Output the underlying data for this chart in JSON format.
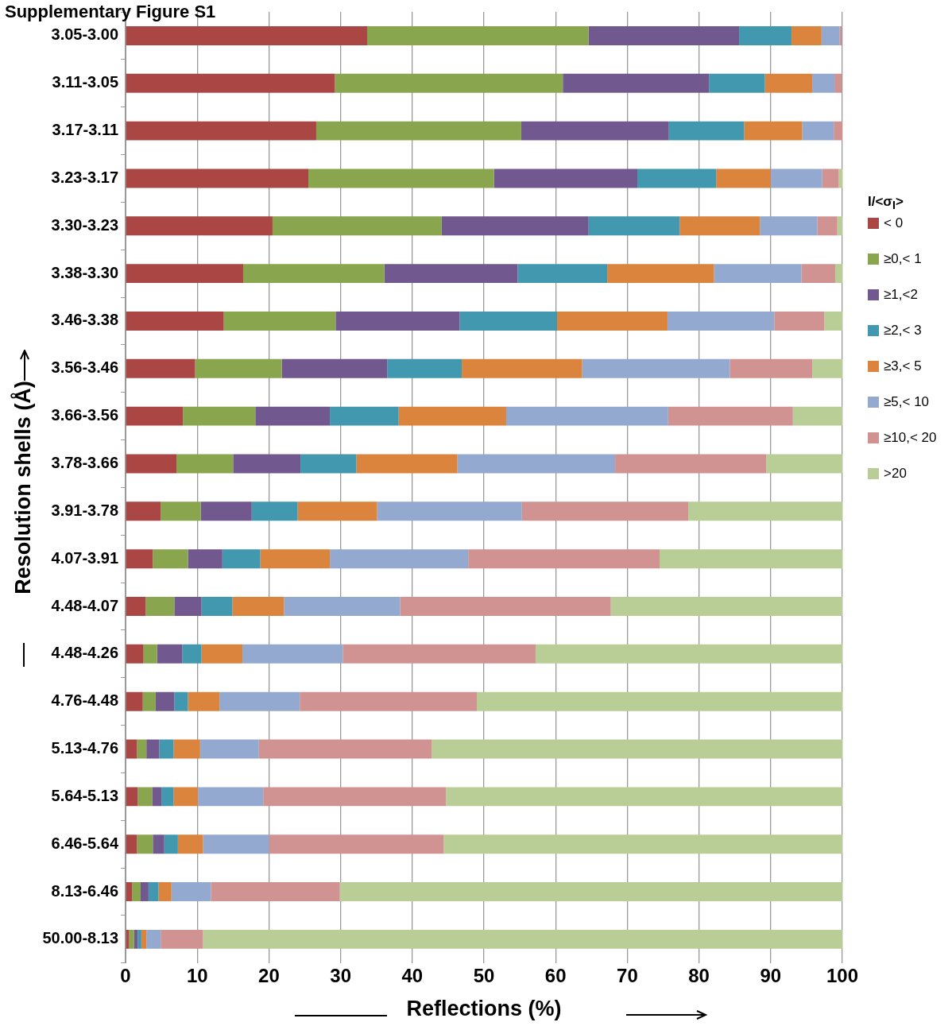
{
  "chart_data": {
    "type": "bar",
    "orientation": "horizontal",
    "stacked": true,
    "title": "Supplementary Figure S1",
    "xlabel": "Reflections (%)",
    "ylabel": "Resolution shells (Å)",
    "legend_title": "I/<σ$_{I}$>",
    "legend": "right",
    "grid": "x",
    "xlim": [
      0,
      100
    ],
    "xticks": [
      0,
      10,
      20,
      30,
      40,
      50,
      60,
      70,
      80,
      90,
      100
    ],
    "categories": [
      "3.05-3.00",
      "3.11-3.05",
      "3.17-3.11",
      "3.23-3.17",
      "3.30-3.23",
      "3.38-3.30",
      "3.46-3.38",
      "3.56-3.46",
      "3.66-3.56",
      "3.78-3.66",
      "3.91-3.78",
      "4.07-3.91",
      "4.48-4.07",
      "4.48-4.26",
      "4.76-4.48",
      "5.13-4.76",
      "5.64-5.13",
      "6.46-5.64",
      "8.13-6.46",
      "50.00-8.13"
    ],
    "series": [
      {
        "name": "< 0",
        "color": "#aa4644",
        "values": [
          33.7,
          29.2,
          26.6,
          25.5,
          20.5,
          16.4,
          13.7,
          9.7,
          8.0,
          7.1,
          4.9,
          3.8,
          2.8,
          2.5,
          2.4,
          1.6,
          1.7,
          1.6,
          0.9,
          0.5
        ]
      },
      {
        "name": "≥0,< 1",
        "color": "#89a54e",
        "values": [
          30.9,
          31.8,
          28.6,
          25.9,
          23.6,
          19.7,
          15.6,
          12.1,
          10.1,
          7.9,
          5.6,
          4.9,
          4.0,
          1.9,
          1.8,
          1.3,
          2.0,
          2.2,
          1.2,
          0.7
        ]
      },
      {
        "name": "≥1,<2",
        "color": "#71588f",
        "values": [
          21.0,
          20.4,
          20.6,
          20.0,
          20.5,
          18.6,
          17.3,
          14.7,
          10.4,
          9.4,
          7.1,
          4.8,
          3.8,
          3.5,
          2.6,
          1.8,
          1.3,
          1.6,
          1.1,
          0.5
        ]
      },
      {
        "name": "≥2,< 3",
        "color": "#4198af",
        "values": [
          7.3,
          7.8,
          10.5,
          11.0,
          12.7,
          12.5,
          13.6,
          10.4,
          9.6,
          7.8,
          6.4,
          5.3,
          4.3,
          2.7,
          1.9,
          2.0,
          1.7,
          1.9,
          1.4,
          0.5
        ]
      },
      {
        "name": "≥3,< 5",
        "color": "#db843d",
        "values": [
          4.2,
          6.6,
          8.1,
          7.6,
          11.2,
          14.9,
          15.4,
          16.8,
          15.0,
          14.1,
          11.1,
          9.7,
          7.2,
          5.7,
          4.4,
          3.7,
          3.4,
          3.5,
          1.8,
          0.7
        ]
      },
      {
        "name": "≥5,< 10",
        "color": "#93a9cf",
        "values": [
          2.5,
          3.1,
          4.4,
          7.2,
          8.0,
          12.2,
          14.9,
          20.6,
          22.6,
          22.0,
          20.2,
          19.3,
          16.2,
          14.0,
          11.2,
          8.2,
          9.1,
          9.2,
          5.5,
          2.0
        ]
      },
      {
        "name": "≥10,< 20",
        "color": "#d19392",
        "values": [
          0.3,
          1.0,
          1.2,
          2.3,
          2.8,
          4.7,
          7.0,
          11.5,
          17.4,
          21.1,
          23.2,
          26.7,
          29.4,
          26.9,
          24.7,
          24.1,
          25.5,
          24.4,
          18.0,
          5.9
        ]
      },
      {
        "name": ">20",
        "color": "#b9cd96",
        "values": [
          0,
          0,
          0,
          0.5,
          0.7,
          1.0,
          2.5,
          4.2,
          6.9,
          10.6,
          21.5,
          25.5,
          32.3,
          42.8,
          51.0,
          57.3,
          55.3,
          55.6,
          70.1,
          89.2
        ]
      }
    ]
  }
}
